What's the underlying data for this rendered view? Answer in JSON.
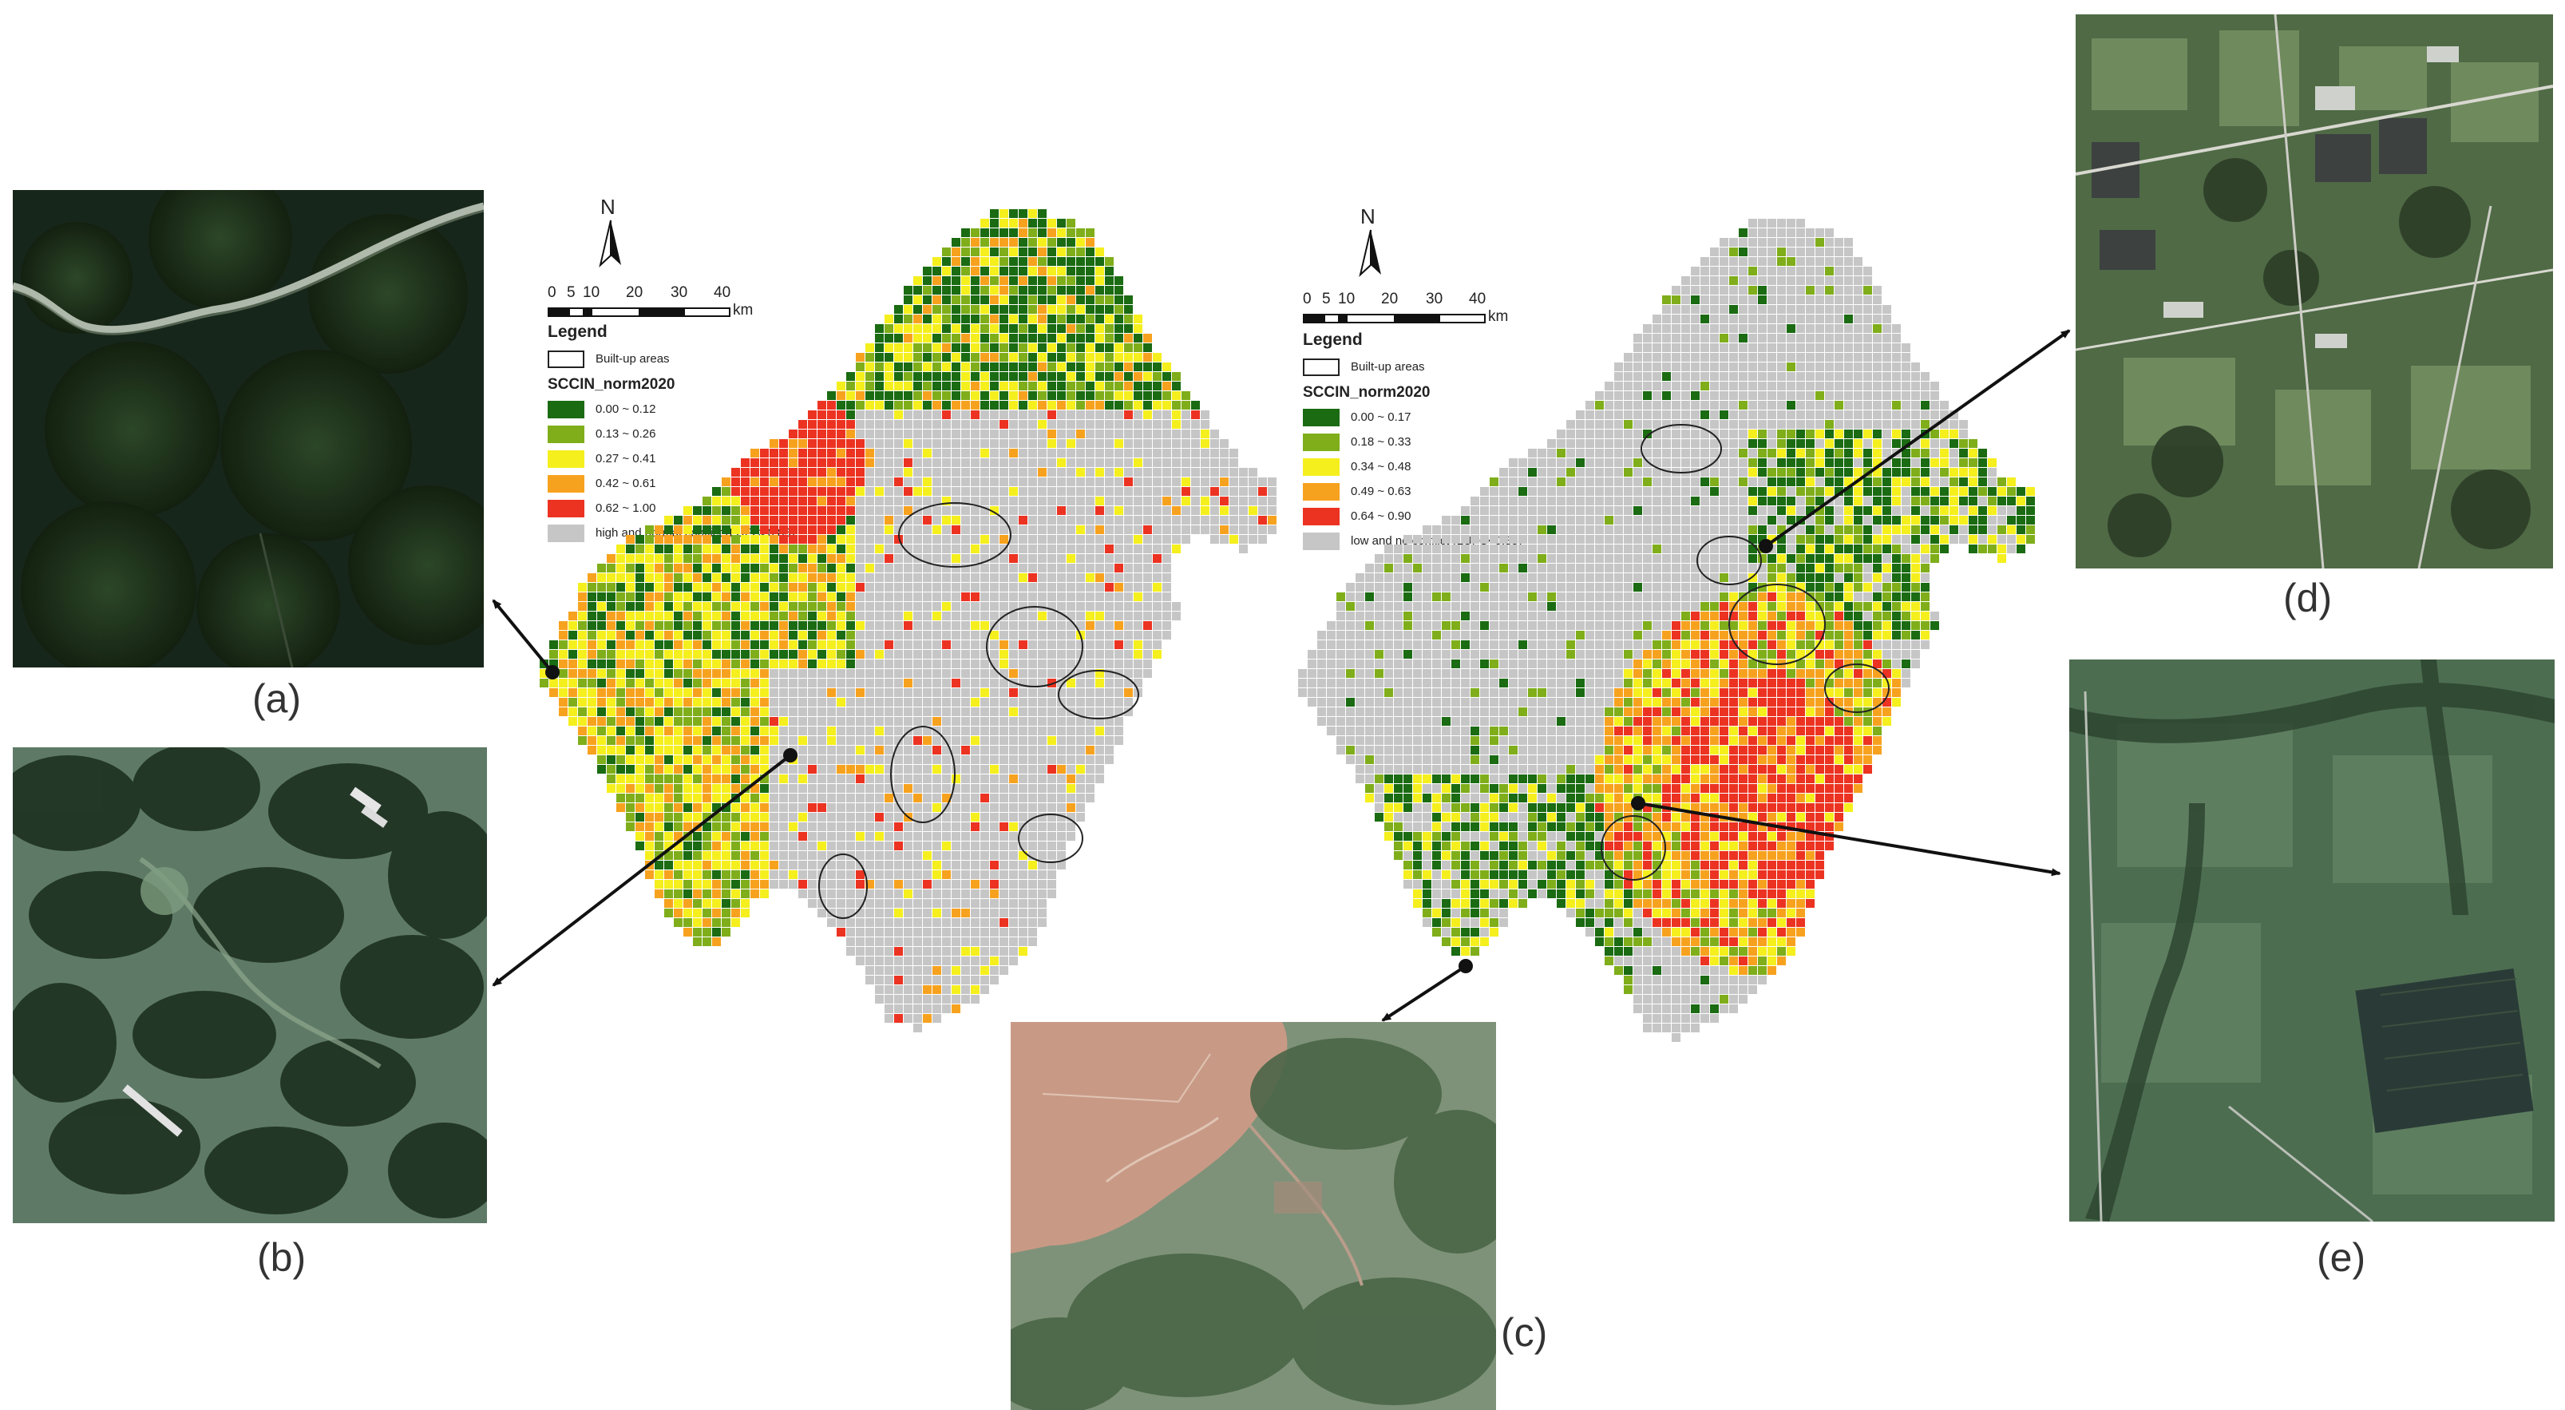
{
  "panels": {
    "a": {
      "label": "(a)",
      "scene": "dense-forest-with-river"
    },
    "b": {
      "label": "(b)",
      "scene": "hilly-forest-with-fields"
    },
    "c": {
      "label": "(c)",
      "scene": "cleared-red-soil-land"
    },
    "d": {
      "label": "(d)",
      "scene": "rural-farmland-with-buildings"
    },
    "e": {
      "label": "(e)",
      "scene": "flat-farmland-with-village-strips"
    }
  },
  "left_map": {
    "north_label": "N",
    "scale_labels": [
      "0",
      "5",
      "10",
      "20",
      "30",
      "40",
      "km"
    ],
    "legend_title": "Legend",
    "builtup_label": "Built-up areas",
    "index_title": "SCCIN_norm2020",
    "classes": [
      {
        "label": "0.00 ~ 0.12",
        "color": "#1a6b12"
      },
      {
        "label": "0.13 ~ 0.26",
        "color": "#7fae1a"
      },
      {
        "label": "0.27 ~ 0.41",
        "color": "#f5ef1e"
      },
      {
        "label": "0.42 ~ 0.61",
        "color": "#f7a21e"
      },
      {
        "label": "0.62 ~ 1.00",
        "color": "#ec3322"
      }
    ],
    "gray_label": "high and normal conflict (LUFC>0.85)",
    "gray_color": "#c6c6c6"
  },
  "right_map": {
    "north_label": "N",
    "scale_labels": [
      "0",
      "5",
      "10",
      "20",
      "30",
      "40",
      "km"
    ],
    "legend_title": "Legend",
    "builtup_label": "Built-up areas",
    "index_title": "SCCIN_norm2020",
    "classes": [
      {
        "label": "0.00 ~ 0.17",
        "color": "#1a6b12"
      },
      {
        "label": "0.18 ~ 0.33",
        "color": "#7fae1a"
      },
      {
        "label": "0.34 ~ 0.48",
        "color": "#f5ef1e"
      },
      {
        "label": "0.49 ~ 0.63",
        "color": "#f7a21e"
      },
      {
        "label": "0.64 ~ 0.90",
        "color": "#ec3322"
      }
    ],
    "gray_label": "low and no conflict (LUFC<0.85)",
    "gray_color": "#c6c6c6"
  },
  "colors": {
    "arrow": "#111111",
    "outline": "#222222"
  }
}
